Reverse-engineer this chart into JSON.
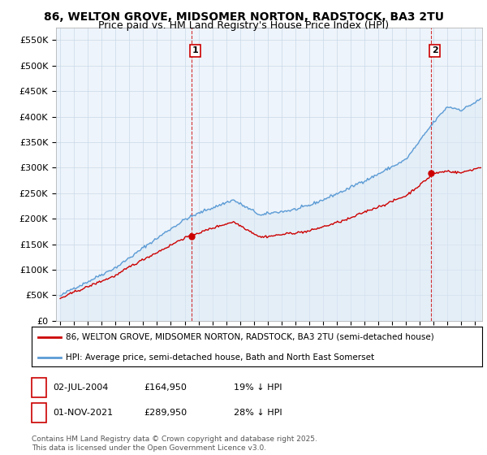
{
  "title": "86, WELTON GROVE, MIDSOMER NORTON, RADSTOCK, BA3 2TU",
  "subtitle": "Price paid vs. HM Land Registry's House Price Index (HPI)",
  "ylabel_ticks": [
    "£0",
    "£50K",
    "£100K",
    "£150K",
    "£200K",
    "£250K",
    "£300K",
    "£350K",
    "£400K",
    "£450K",
    "£500K",
    "£550K"
  ],
  "ytick_values": [
    0,
    50000,
    100000,
    150000,
    200000,
    250000,
    300000,
    350000,
    400000,
    450000,
    500000,
    550000
  ],
  "ylim": [
    0,
    575000
  ],
  "xlim_start": 1994.7,
  "xlim_end": 2025.5,
  "hpi_color": "#5b9bd5",
  "hpi_fill_color": "#dce9f5",
  "price_color": "#cc0000",
  "transaction1_date": 2004.5,
  "transaction1_price": 164950,
  "transaction2_date": 2021.83,
  "transaction2_price": 289950,
  "legend_line1": "86, WELTON GROVE, MIDSOMER NORTON, RADSTOCK, BA3 2TU (semi-detached house)",
  "legend_line2": "HPI: Average price, semi-detached house, Bath and North East Somerset",
  "annotation1_date": "02-JUL-2004",
  "annotation1_price": "£164,950",
  "annotation1_pct": "19% ↓ HPI",
  "annotation2_date": "01-NOV-2021",
  "annotation2_price": "£289,950",
  "annotation2_pct": "28% ↓ HPI",
  "footnote": "Contains HM Land Registry data © Crown copyright and database right 2025.\nThis data is licensed under the Open Government Licence v3.0.",
  "background_color": "#ffffff",
  "plot_bg_color": "#eef4fb",
  "grid_color": "#c8d8e8",
  "title_fontsize": 10,
  "subtitle_fontsize": 9
}
